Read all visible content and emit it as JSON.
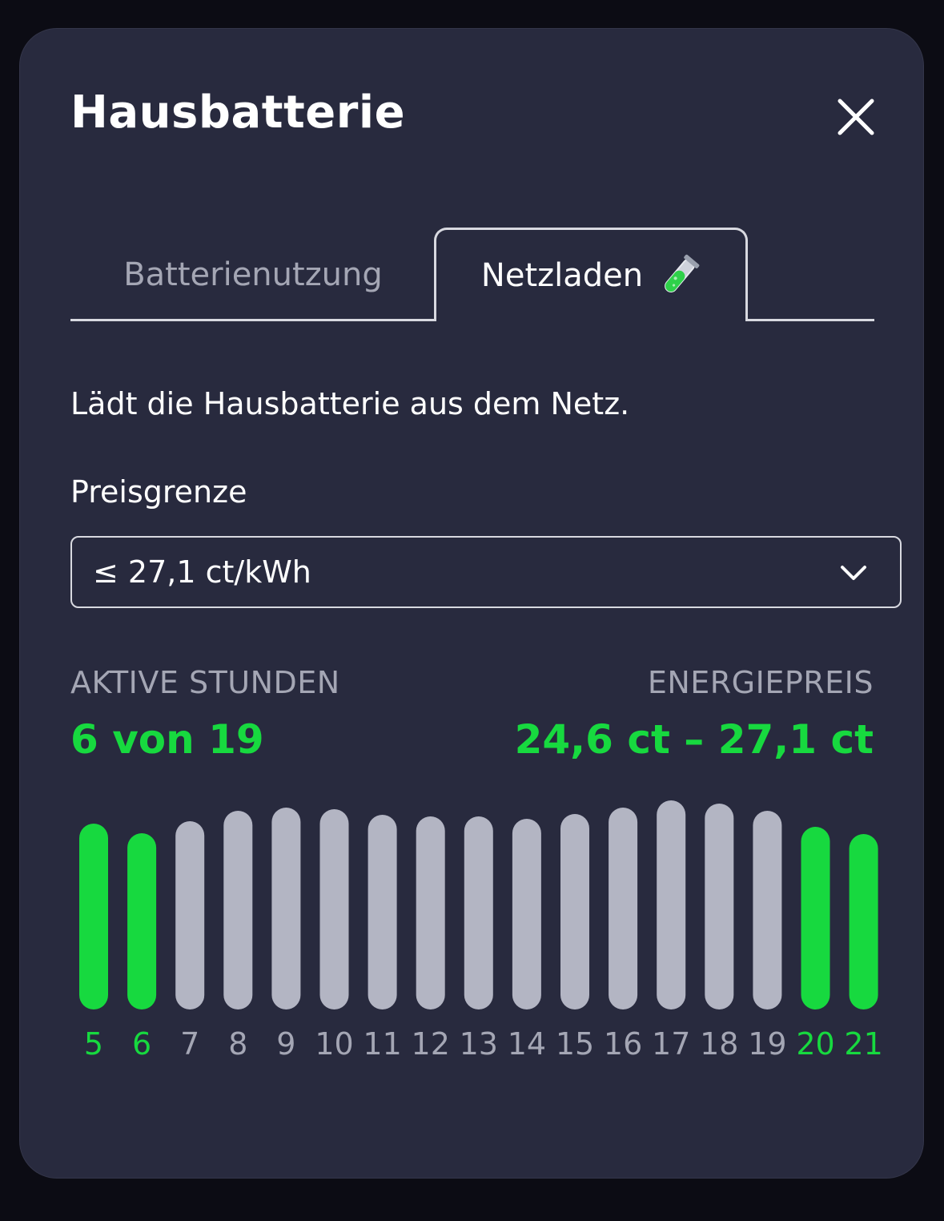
{
  "modal": {
    "title": "Hausbatterie",
    "close_icon": "close-icon"
  },
  "tabs": [
    {
      "label": "Batterienutzung",
      "active": false
    },
    {
      "label": "Netzladen",
      "active": true,
      "icon": "test-tube-icon"
    }
  ],
  "description": "Lädt die Hausbatterie aus dem Netz.",
  "price_limit": {
    "label": "Preisgrenze",
    "value": "≤ 27,1 ct/kWh",
    "icon": "chevron-down-icon"
  },
  "stats": {
    "active_hours_label": "AKTIVE STUNDEN",
    "active_hours_value": "6 von 19",
    "energy_price_label": "ENERGIEPREIS",
    "energy_price_value": "24,6 ct – 27,1 ct"
  },
  "colors": {
    "accent_green": "#17d93f",
    "inactive_bar": "#b3b5c3",
    "background": "#282a3e"
  },
  "chart_data": {
    "type": "bar",
    "categories": [
      "5",
      "6",
      "7",
      "8",
      "9",
      "10",
      "11",
      "12",
      "13",
      "14",
      "15",
      "16",
      "17",
      "18",
      "19",
      "20",
      "21"
    ],
    "values": [
      232,
      220,
      235,
      248,
      252,
      250,
      243,
      241,
      241,
      238,
      244,
      252,
      261,
      257,
      248,
      228,
      219
    ],
    "active": [
      true,
      true,
      false,
      false,
      false,
      false,
      false,
      false,
      false,
      false,
      false,
      false,
      false,
      false,
      false,
      true,
      true
    ]
  }
}
